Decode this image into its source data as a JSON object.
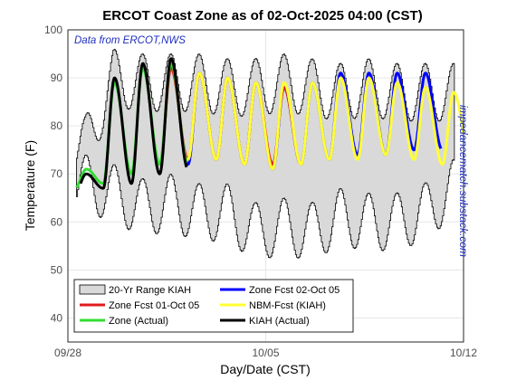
{
  "chart_data": {
    "type": "line",
    "title": "ERCOT Coast Zone as of 02-Oct-2025 04:00 (CST)",
    "source_note": "Data from ERCOT,NWS",
    "watermark": "impedancematch.substack.com",
    "xlabel": "Day/Date (CST)",
    "ylabel": "Temperature (F)",
    "xlim": [
      0,
      14
    ],
    "ylim": [
      35,
      100
    ],
    "x_ticks": [
      {
        "x": 0,
        "label": "09/28"
      },
      {
        "x": 7,
        "label": "10/05"
      },
      {
        "x": 14,
        "label": "10/12"
      }
    ],
    "y_ticks": [
      40,
      50,
      60,
      70,
      80,
      90,
      100
    ],
    "x_units": "days since 09/28 00:00 (CST)",
    "grid": true,
    "legend": {
      "placement": "bottom-left",
      "columns": 2,
      "entries": [
        "20-Yr Range KIAH",
        "Zone Fcst 02-Oct 05",
        "Zone Fcst 01-Oct 05",
        "NBM-Fcst (KIAH)",
        "Zone (Actual)",
        "KIAH (Actual)"
      ]
    },
    "range_band": {
      "name": "20-Yr Range KIAH",
      "color": "#d9d9d9",
      "daily": [
        {
          "x": 0.6,
          "min": 62,
          "max": 82
        },
        {
          "x": 1.6,
          "min": 60,
          "max": 96
        },
        {
          "x": 2.6,
          "min": 57,
          "max": 95
        },
        {
          "x": 3.6,
          "min": 58,
          "max": 95
        },
        {
          "x": 4.6,
          "min": 56,
          "max": 95
        },
        {
          "x": 5.6,
          "min": 56,
          "max": 94
        },
        {
          "x": 6.6,
          "min": 52,
          "max": 94
        },
        {
          "x": 7.6,
          "min": 53,
          "max": 95
        },
        {
          "x": 8.6,
          "min": 52,
          "max": 94
        },
        {
          "x": 9.6,
          "min": 55,
          "max": 93
        },
        {
          "x": 10.6,
          "min": 54,
          "max": 94
        },
        {
          "x": 11.6,
          "min": 54,
          "max": 93
        },
        {
          "x": 12.6,
          "min": 56,
          "max": 93
        },
        {
          "x": 13.6,
          "min": 61,
          "max": 93
        }
      ]
    },
    "series": [
      {
        "name": "Zone Fcst 02-Oct 05",
        "color": "#0000ff",
        "x_start": 4.2,
        "x_end": 13.2,
        "daily": [
          {
            "day": 4,
            "high": 91,
            "low": 72
          },
          {
            "day": 5,
            "high": 90,
            "low": 73
          },
          {
            "day": 6,
            "high": 89,
            "low": 72
          },
          {
            "day": 7,
            "high": 88,
            "low": 71
          },
          {
            "day": 8,
            "high": 89,
            "low": 72
          },
          {
            "day": 9,
            "high": 91,
            "low": 73
          },
          {
            "day": 10,
            "high": 91,
            "low": 74
          },
          {
            "day": 11,
            "high": 91,
            "low": 74
          },
          {
            "day": 12,
            "high": 91,
            "low": 75
          },
          {
            "day": 13,
            "high": 91,
            "low": 75
          }
        ]
      },
      {
        "name": "Zone Fcst 01-Oct 05",
        "color": "#e01b1b",
        "x_start": 3.2,
        "x_end": 8.2,
        "daily": [
          {
            "day": 3,
            "high": 92,
            "low": 72
          },
          {
            "day": 4,
            "high": 91,
            "low": 73
          },
          {
            "day": 5,
            "high": 90,
            "low": 73
          },
          {
            "day": 6,
            "high": 89,
            "low": 72
          },
          {
            "day": 7,
            "high": 88,
            "low": 72
          },
          {
            "day": 8,
            "high": 88,
            "low": 72
          }
        ]
      },
      {
        "name": "NBM-Fcst (KIAH)",
        "color": "#ffff33",
        "x_start": 4.2,
        "x_end": 14.0,
        "daily": [
          {
            "day": 4,
            "high": 91,
            "low": 73
          },
          {
            "day": 5,
            "high": 90,
            "low": 73
          },
          {
            "day": 6,
            "high": 89,
            "low": 72
          },
          {
            "day": 7,
            "high": 89,
            "low": 71
          },
          {
            "day": 8,
            "high": 89,
            "low": 72
          },
          {
            "day": 9,
            "high": 90,
            "low": 73
          },
          {
            "day": 10,
            "high": 90,
            "low": 73
          },
          {
            "day": 11,
            "high": 89,
            "low": 74
          },
          {
            "day": 12,
            "high": 88,
            "low": 73
          },
          {
            "day": 13,
            "high": 87,
            "low": 72
          },
          {
            "day": 14,
            "high": 87,
            "low": 73
          }
        ]
      },
      {
        "name": "Zone (Actual)",
        "color": "#33dd33",
        "x_start": 0.3,
        "x_end": 4.2,
        "daily": [
          {
            "day": 0,
            "high": 71,
            "low": 67
          },
          {
            "day": 1,
            "high": 89,
            "low": 68
          },
          {
            "day": 2,
            "high": 92,
            "low": 70
          },
          {
            "day": 3,
            "high": 93,
            "low": 72
          },
          {
            "day": 4,
            "high": 91,
            "low": 72
          }
        ]
      },
      {
        "name": "KIAH (Actual)",
        "color": "#000000",
        "x_start": 0.45,
        "x_end": 4.2,
        "daily": [
          {
            "day": 0,
            "high": 70,
            "low": 66
          },
          {
            "day": 1,
            "high": 90,
            "low": 67
          },
          {
            "day": 2,
            "high": 93,
            "low": 68
          },
          {
            "day": 3,
            "high": 94,
            "low": 70
          },
          {
            "day": 4,
            "high": 91,
            "low": 71
          }
        ]
      }
    ]
  }
}
